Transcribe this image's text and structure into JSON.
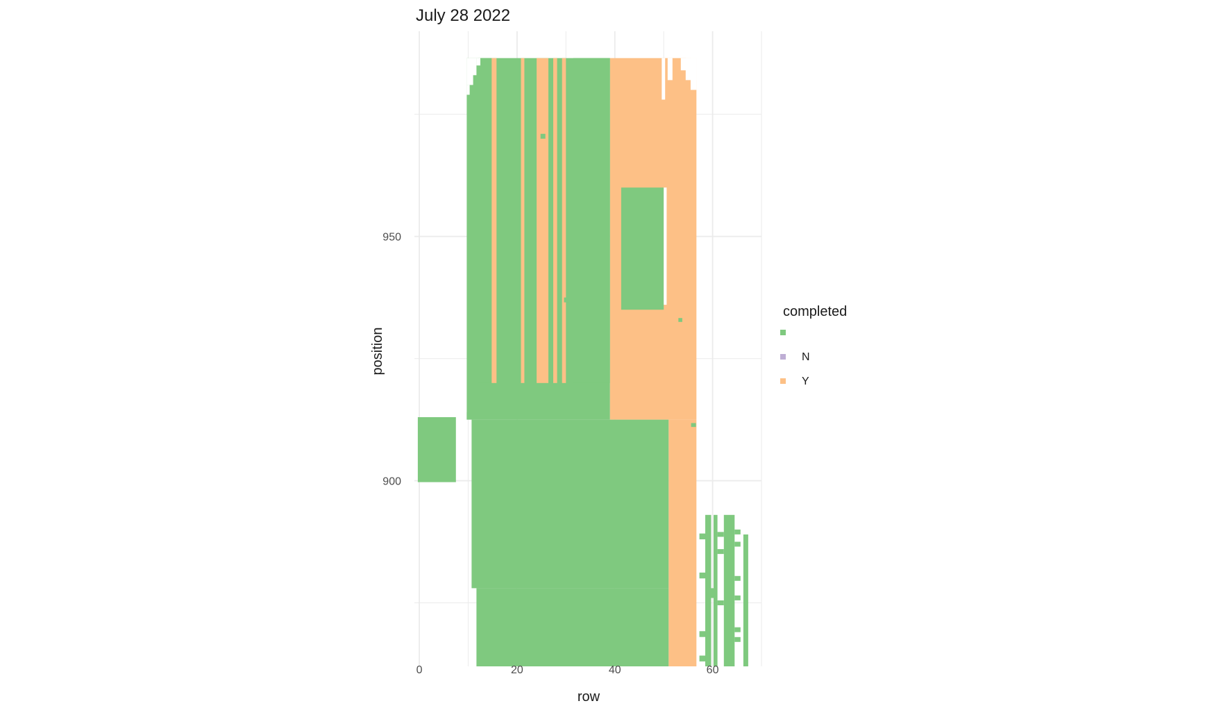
{
  "chart_data": {
    "type": "heatmap",
    "title": "July 28 2022",
    "xlabel": "row",
    "ylabel": "position",
    "xlim": [
      -1,
      70
    ],
    "ylim": [
      862,
      992
    ],
    "x_ticks": [
      0,
      20,
      40,
      60
    ],
    "x_minor": [
      10,
      30,
      50,
      70
    ],
    "y_ticks": [
      900,
      950
    ],
    "y_minor": [
      875,
      925,
      975
    ],
    "grid": true,
    "legend": {
      "title": "completed",
      "placement": "right",
      "entries": [
        {
          "label": "",
          "color": "#7fc97f"
        },
        {
          "label": "N",
          "color": "#beaed4"
        },
        {
          "label": "Y",
          "color": "#fdc086"
        }
      ]
    },
    "tiles": [
      {
        "x0": 39,
        "x1": 56.7,
        "y0": 912.5,
        "y1": 986.5,
        "fill": "Y"
      },
      {
        "x0": 51,
        "x1": 56.7,
        "y0": 862,
        "y1": 912.5,
        "fill": "Y"
      },
      {
        "x0": 9.7,
        "x1": 39,
        "y0": 912.5,
        "y1": 986.5,
        "fill": ""
      },
      {
        "x0": 10.7,
        "x1": 51,
        "y0": 878,
        "y1": 912.5,
        "fill": ""
      },
      {
        "x0": 11.7,
        "x1": 51,
        "y0": 862,
        "y1": 878,
        "fill": ""
      },
      {
        "x0": 9.7,
        "x1": 11,
        "y0": 912.5,
        "y1": 914,
        "fill": ""
      },
      {
        "x0": -0.3,
        "x1": 7.5,
        "y0": 899.7,
        "y1": 913,
        "fill": ""
      },
      {
        "x0": 40.2,
        "x1": 41.3,
        "y0": 935,
        "y1": 960,
        "fill": "Y"
      },
      {
        "x0": 41.3,
        "x1": 50,
        "y0": 935,
        "y1": 960,
        "fill": ""
      },
      {
        "x0": 50,
        "x1": 50.6,
        "y0": 936,
        "y1": 960,
        "fill": "white"
      },
      {
        "x0": 50.8,
        "x1": 51.8,
        "y0": 982,
        "y1": 986.5,
        "fill": "white"
      },
      {
        "x0": 49.6,
        "x1": 50.3,
        "y0": 978,
        "y1": 986.5,
        "fill": "white"
      },
      {
        "x0": 53.5,
        "x1": 56.7,
        "y0": 984,
        "y1": 986.5,
        "fill": "white"
      },
      {
        "x0": 54.5,
        "x1": 56.7,
        "y0": 982,
        "y1": 986.5,
        "fill": "white"
      },
      {
        "x0": 55.5,
        "x1": 56.7,
        "y0": 980,
        "y1": 986.5,
        "fill": "white"
      },
      {
        "x0": 12,
        "x1": 14.8,
        "y0": 920,
        "y1": 986.5,
        "fill": ""
      },
      {
        "x0": 14.8,
        "x1": 15.8,
        "y0": 920,
        "y1": 986.5,
        "fill": "Y"
      },
      {
        "x0": 20.8,
        "x1": 21.5,
        "y0": 920,
        "y1": 986.5,
        "fill": "Y"
      },
      {
        "x0": 24,
        "x1": 26.4,
        "y0": 920,
        "y1": 986.5,
        "fill": "Y"
      },
      {
        "x0": 27.4,
        "x1": 28.2,
        "y0": 920,
        "y1": 986.5,
        "fill": "Y"
      },
      {
        "x0": 29.2,
        "x1": 30,
        "y0": 920,
        "y1": 986.5,
        "fill": "Y"
      },
      {
        "x0": 31.5,
        "x1": 39,
        "y0": 920,
        "y1": 986.5,
        "fill": ""
      },
      {
        "x0": 24.8,
        "x1": 25.8,
        "y0": 970,
        "y1": 971,
        "fill": ""
      },
      {
        "x0": 29.6,
        "x1": 30.6,
        "y0": 936.5,
        "y1": 937.5,
        "fill": ""
      },
      {
        "x0": 53,
        "x1": 53.8,
        "y0": 932.5,
        "y1": 933.3,
        "fill": ""
      },
      {
        "x0": 55.6,
        "x1": 56.6,
        "y0": 911,
        "y1": 911.8,
        "fill": ""
      },
      {
        "x0": 9.7,
        "x1": 10.3,
        "y0": 979,
        "y1": 981,
        "fill": "white"
      },
      {
        "x0": 9.7,
        "x1": 11,
        "y0": 981,
        "y1": 986.5,
        "fill": "white"
      },
      {
        "x0": 11,
        "x1": 11.7,
        "y0": 983,
        "y1": 986.5,
        "fill": "white"
      },
      {
        "x0": 11.7,
        "x1": 12.5,
        "y0": 985,
        "y1": 986.5,
        "fill": "white"
      },
      {
        "x0": 58.5,
        "x1": 59.7,
        "y0": 862,
        "y1": 893,
        "fill": ""
      },
      {
        "x0": 60.2,
        "x1": 61,
        "y0": 862,
        "y1": 893,
        "fill": ""
      },
      {
        "x0": 62.3,
        "x1": 64.5,
        "y0": 862,
        "y1": 893,
        "fill": ""
      },
      {
        "x0": 66.3,
        "x1": 67.3,
        "y0": 862,
        "y1": 889,
        "fill": ""
      },
      {
        "x0": 57.3,
        "x1": 58.5,
        "y0": 888,
        "y1": 889.2,
        "fill": ""
      },
      {
        "x0": 57.3,
        "x1": 58.5,
        "y0": 880,
        "y1": 881.2,
        "fill": ""
      },
      {
        "x0": 57.3,
        "x1": 58.5,
        "y0": 868,
        "y1": 869.2,
        "fill": ""
      },
      {
        "x0": 57.3,
        "x1": 58.5,
        "y0": 863,
        "y1": 864.2,
        "fill": ""
      },
      {
        "x0": 61,
        "x1": 62.3,
        "y0": 888.5,
        "y1": 889.5,
        "fill": ""
      },
      {
        "x0": 61,
        "x1": 62.3,
        "y0": 885,
        "y1": 886,
        "fill": ""
      },
      {
        "x0": 61,
        "x1": 62.3,
        "y0": 874.5,
        "y1": 875.5,
        "fill": ""
      },
      {
        "x0": 64.5,
        "x1": 65.7,
        "y0": 889,
        "y1": 890,
        "fill": ""
      },
      {
        "x0": 64.5,
        "x1": 65.7,
        "y0": 886.5,
        "y1": 887.5,
        "fill": ""
      },
      {
        "x0": 64.5,
        "x1": 65.7,
        "y0": 879.5,
        "y1": 880.5,
        "fill": ""
      },
      {
        "x0": 64.5,
        "x1": 65.7,
        "y0": 875.5,
        "y1": 876.5,
        "fill": ""
      },
      {
        "x0": 64.5,
        "x1": 65.7,
        "y0": 869,
        "y1": 870,
        "fill": ""
      },
      {
        "x0": 64.5,
        "x1": 65.7,
        "y0": 867,
        "y1": 868,
        "fill": ""
      },
      {
        "x0": 59.7,
        "x1": 60.2,
        "y0": 876,
        "y1": 878,
        "fill": ""
      }
    ]
  }
}
